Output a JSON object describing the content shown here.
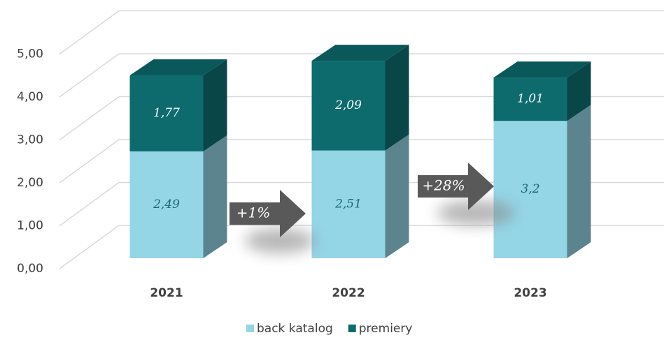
{
  "chart_data": {
    "type": "bar3d_stacked",
    "categories": [
      "2021",
      "2022",
      "2023"
    ],
    "series": [
      {
        "name": "back katalog",
        "color": "#94d5e6",
        "values": [
          2.49,
          2.51,
          3.2
        ],
        "value_labels": [
          "2,49",
          "2,51",
          "3,2"
        ]
      },
      {
        "name": "premiery",
        "color": "#0d6b6e",
        "values": [
          1.77,
          2.09,
          1.01
        ],
        "value_labels": [
          "1,77",
          "2,09",
          "1,01"
        ]
      }
    ],
    "ylim": [
      0,
      5
    ],
    "yticks": [
      {
        "value": 0,
        "label": "0,00"
      },
      {
        "value": 1,
        "label": "1,00"
      },
      {
        "value": 2,
        "label": "2,00"
      },
      {
        "value": 3,
        "label": "3,00"
      },
      {
        "value": 4,
        "label": "4,00"
      },
      {
        "value": 5,
        "label": "5,00"
      }
    ],
    "grid": true,
    "legend": "bottom",
    "annotations": [
      "+1%",
      "+28%"
    ]
  }
}
